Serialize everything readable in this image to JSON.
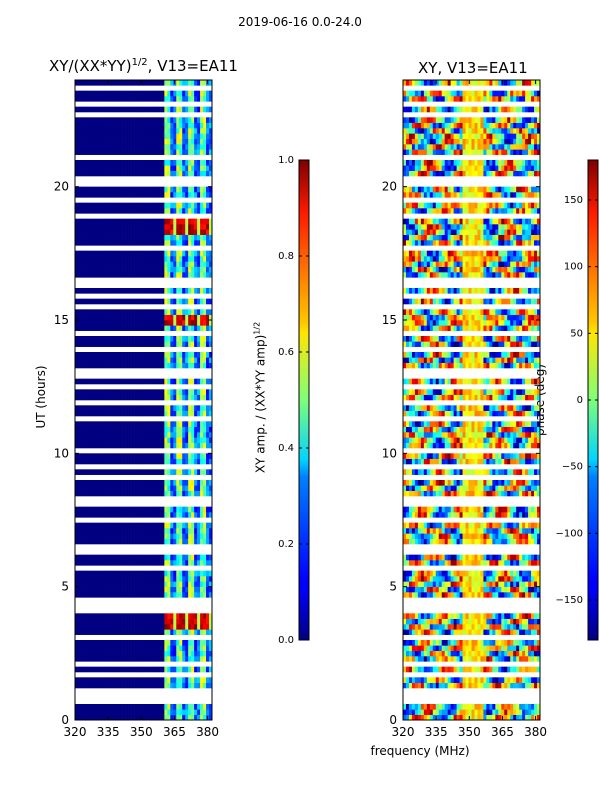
{
  "suptitle": "2019-06-16 0.0-24.0",
  "chart_data": [
    {
      "type": "heatmap",
      "title_main": "XY/(XX*YY)",
      "title_exp": "1/2",
      "title_suffix": ", V13=EA11",
      "xlabel": "",
      "ylabel": "UT (hours)",
      "xlim": [
        320,
        382
      ],
      "ylim": [
        0,
        24
      ],
      "xticks": [
        320,
        335,
        350,
        365,
        380
      ],
      "yticks": [
        0,
        5,
        10,
        15,
        20
      ],
      "colorbar": {
        "label_main": "XY amp. / (XX*YY amp)",
        "label_exp": "1/2",
        "range": [
          0.0,
          1.0
        ],
        "ticks": [
          "0.0",
          "0.2",
          "0.4",
          "0.6",
          "0.8",
          "1.0"
        ],
        "tick_values": [
          0.0,
          0.2,
          0.4,
          0.6,
          0.8,
          1.0
        ],
        "colormap": "jet"
      },
      "low_band_mhz": [
        320,
        360
      ],
      "active_band_mhz": [
        360,
        382
      ],
      "high_amplitude_hours": [
        [
          18.2,
          18.8
        ],
        [
          14.9,
          15.2
        ],
        [
          3.5,
          4.0
        ]
      ]
    },
    {
      "type": "heatmap",
      "title_main": "XY, V13=EA11",
      "xlabel": "frequency (MHz)",
      "ylabel": "",
      "xlim": [
        320,
        382
      ],
      "ylim": [
        0,
        24
      ],
      "xticks": [
        320,
        335,
        350,
        365,
        380
      ],
      "yticks": [
        0,
        5,
        10,
        15,
        20
      ],
      "colorbar": {
        "label_main": "phase (deg)",
        "range": [
          -180,
          180
        ],
        "ticks": [
          "−150",
          "−100",
          "−50",
          "0",
          "50",
          "100",
          "150"
        ],
        "tick_values": [
          -150,
          -100,
          -50,
          0,
          50,
          100,
          150
        ],
        "colormap": "jet"
      }
    }
  ],
  "flagged_hours": [
    0.7,
    0.9,
    1.2,
    1.6,
    2.1,
    2.6,
    3.1,
    4.1,
    4.2,
    4.35,
    4.5,
    5.7,
    6.4,
    7.6,
    8.2,
    9.1,
    9.6,
    10.2,
    11.3,
    11.9,
    12.5,
    13.0,
    13.1,
    13.8,
    14.5,
    15.5,
    16.0,
    16.3,
    16.5,
    17.0,
    17.6,
    18.9,
    19.5,
    20.2,
    21.2,
    22.0,
    22.6,
    23.1,
    23.6
  ],
  "colors": {
    "jet_low": "#00007f",
    "jet_high": "#7f0000",
    "gap": "#ffffff"
  }
}
